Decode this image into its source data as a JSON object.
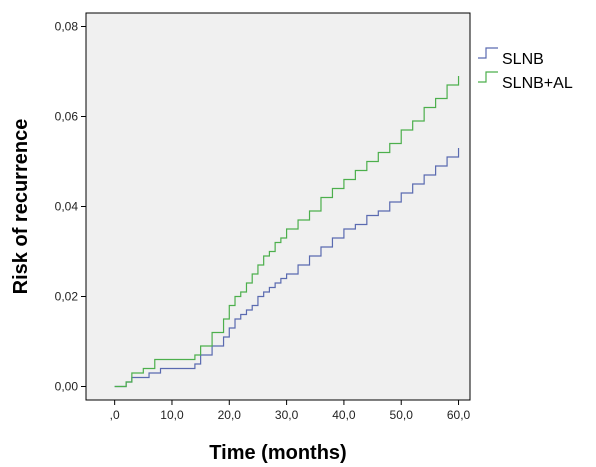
{
  "chart_data": {
    "type": "line",
    "title": "",
    "xlabel": "Time (months)",
    "ylabel": "Risk of recurrence",
    "xlim": [
      -5,
      62
    ],
    "ylim": [
      -0.003,
      0.083
    ],
    "x_ticks": [
      {
        "value": 0,
        "label": ",0"
      },
      {
        "value": 10,
        "label": "10,0"
      },
      {
        "value": 20,
        "label": "20,0"
      },
      {
        "value": 30,
        "label": "30,0"
      },
      {
        "value": 40,
        "label": "40,0"
      },
      {
        "value": 50,
        "label": "50,0"
      },
      {
        "value": 60,
        "label": "60,0"
      }
    ],
    "y_ticks": [
      {
        "value": 0.0,
        "label": "0,00"
      },
      {
        "value": 0.02,
        "label": "0,02"
      },
      {
        "value": 0.04,
        "label": "0,04"
      },
      {
        "value": 0.06,
        "label": "0,06"
      },
      {
        "value": 0.08,
        "label": "0,08"
      }
    ],
    "grid": false,
    "background": "#f0f0f0",
    "legend_position": "right",
    "step": true,
    "series": [
      {
        "name": "SLNB",
        "color": "#5a6ab0",
        "x": [
          0,
          2,
          3,
          6,
          8,
          14,
          15,
          17,
          19,
          20,
          21,
          22,
          23,
          24,
          25,
          26,
          27,
          28,
          29,
          30,
          32,
          34,
          36,
          38,
          40,
          42,
          44,
          46,
          48,
          50,
          52,
          54,
          56,
          58,
          60
        ],
        "y": [
          0,
          0.001,
          0.002,
          0.003,
          0.004,
          0.005,
          0.007,
          0.009,
          0.011,
          0.013,
          0.015,
          0.016,
          0.017,
          0.018,
          0.02,
          0.021,
          0.022,
          0.023,
          0.024,
          0.025,
          0.027,
          0.029,
          0.031,
          0.033,
          0.035,
          0.036,
          0.038,
          0.039,
          0.041,
          0.043,
          0.045,
          0.047,
          0.049,
          0.051,
          0.053
        ]
      },
      {
        "name": "SLNB+AL",
        "color": "#4caf4c",
        "x": [
          0,
          2,
          3,
          5,
          7,
          14,
          15,
          17,
          19,
          20,
          21,
          22,
          23,
          24,
          25,
          26,
          27,
          28,
          29,
          30,
          32,
          34,
          36,
          38,
          40,
          42,
          44,
          46,
          48,
          50,
          52,
          54,
          56,
          58,
          60
        ],
        "y": [
          0,
          0.001,
          0.003,
          0.004,
          0.006,
          0.007,
          0.009,
          0.012,
          0.015,
          0.018,
          0.02,
          0.021,
          0.023,
          0.025,
          0.027,
          0.029,
          0.03,
          0.032,
          0.033,
          0.035,
          0.037,
          0.039,
          0.042,
          0.044,
          0.046,
          0.048,
          0.05,
          0.052,
          0.054,
          0.057,
          0.059,
          0.062,
          0.064,
          0.067,
          0.069
        ]
      }
    ]
  }
}
